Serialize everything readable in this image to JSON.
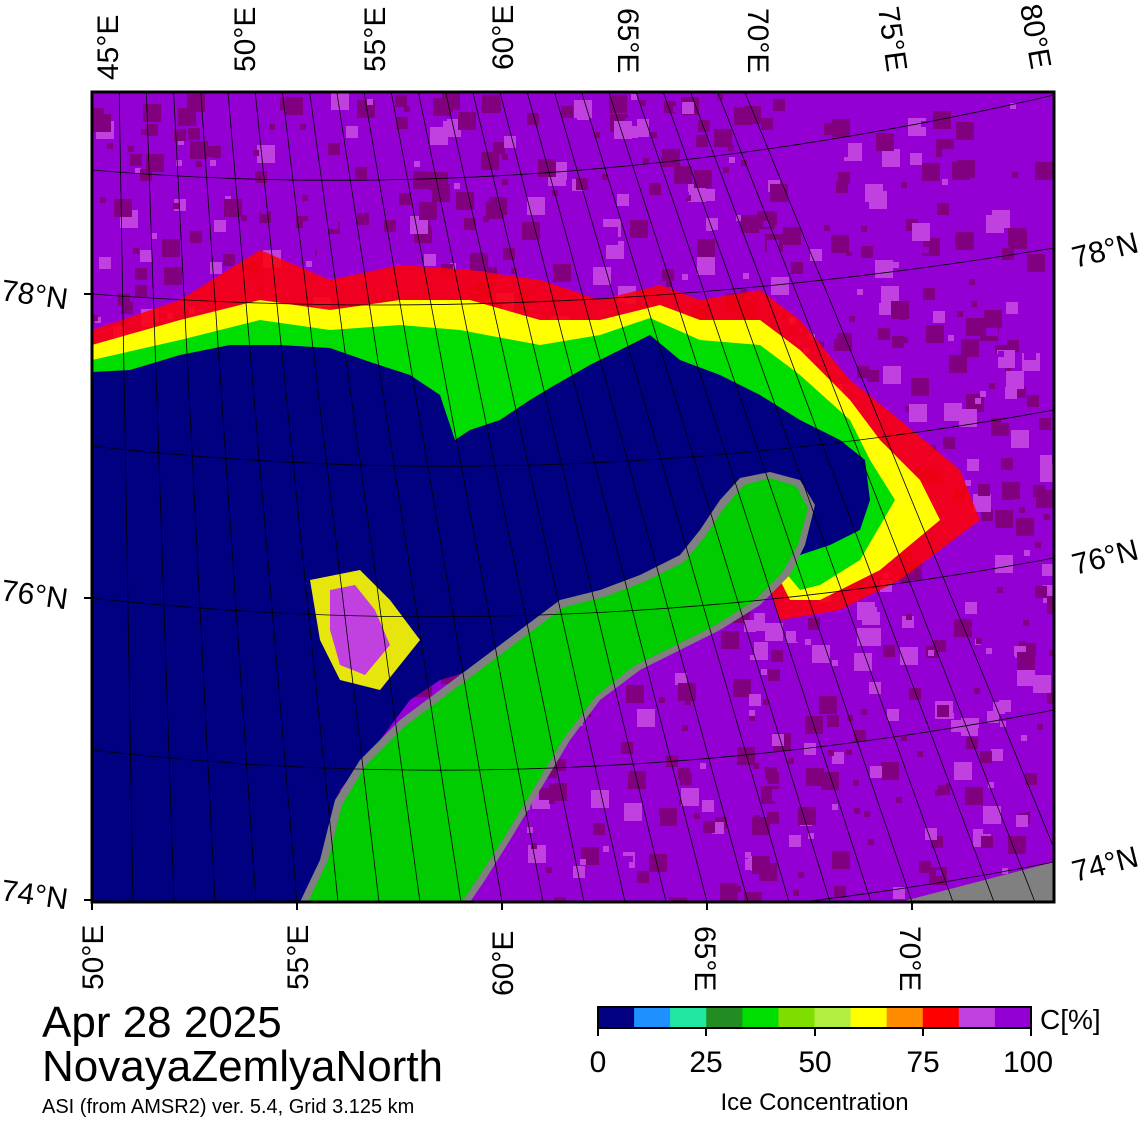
{
  "title": {
    "date": "Apr 28 2025",
    "region": "NovayaZemlyaNorth",
    "source": "ASI (from AMSR2) ver. 5.4,  Grid 3.125 km"
  },
  "colorbar": {
    "unit": "C[%]",
    "label": "Ice Concentration",
    "ticks": [
      "0",
      "25",
      "50",
      "75",
      "100"
    ],
    "colors": [
      "#000080",
      "#1e90ff",
      "#20e8a0",
      "#228b22",
      "#00dd00",
      "#7fdd00",
      "#b0ee40",
      "#ffff00",
      "#ff8c00",
      "#ff0000",
      "#c040e0",
      "#9400d3"
    ]
  },
  "map": {
    "top_lon_labels": [
      "45°E",
      "50°E",
      "55°E",
      "60°E",
      "65°E",
      "70°E",
      "75°E",
      "80°E"
    ],
    "bottom_lon_labels": [
      "50°E",
      "55°E",
      "60°E",
      "65°E",
      "70°E"
    ],
    "left_lat_labels": [
      "78°N",
      "76°N",
      "74°N"
    ],
    "right_lat_labels": [
      "78°N",
      "76°N",
      "74°N"
    ],
    "colors": {
      "open_water": "#000080",
      "land": "#00cc00",
      "land_mask": "#808080",
      "ice_high": "#9400d3",
      "ice_full": "#800080",
      "ice_mid": "#c040e0"
    }
  }
}
